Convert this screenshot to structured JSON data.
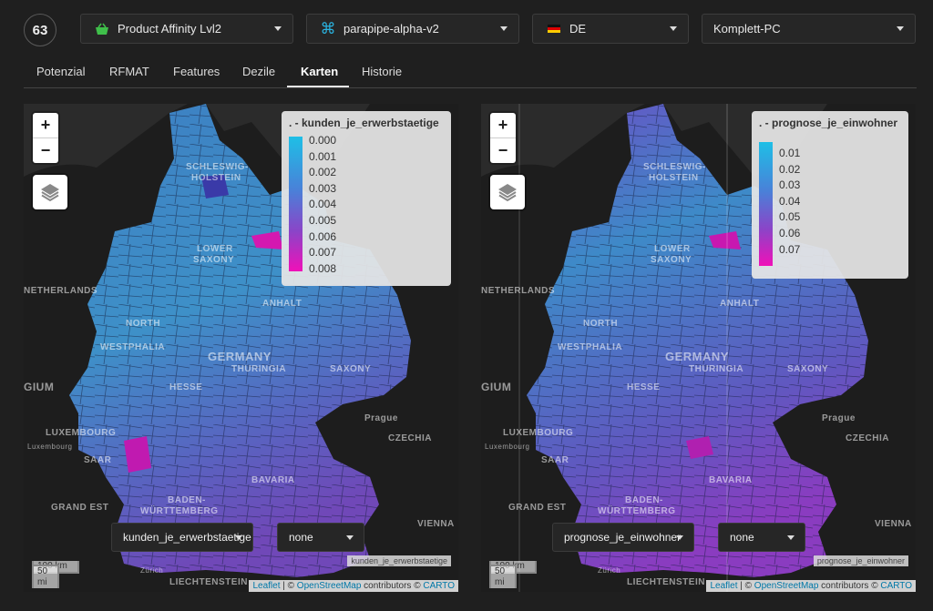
{
  "header": {
    "badge": "63",
    "dropdowns": [
      {
        "icon": "basket-icon",
        "label": "Product Affinity Lvl2"
      },
      {
        "icon": "command-icon",
        "label": "parapipe-alpha-v2"
      },
      {
        "icon": "flag-de-icon",
        "label": "DE"
      },
      {
        "icon": "",
        "label": "Komplett-PC"
      }
    ]
  },
  "tabs": [
    {
      "label": "Potenzial"
    },
    {
      "label": "RFMAT"
    },
    {
      "label": "Features"
    },
    {
      "label": "Dezile"
    },
    {
      "label": "Karten",
      "active": true
    },
    {
      "label": "Historie"
    }
  ],
  "maps": [
    {
      "legend_title": ". - kunden_je_erwerbstaetige",
      "legend_ticks": [
        "0.000",
        "0.001",
        "0.002",
        "0.003",
        "0.004",
        "0.005",
        "0.006",
        "0.007",
        "0.008"
      ],
      "variable_select": "kunden_je_erwerbstaetige",
      "secondary_select": "none",
      "mini_label": "kunden_je_erwerbstaetige",
      "scale_km": "100 km",
      "scale_mi": "50 mi"
    },
    {
      "legend_title": ". - prognose_je_einwohner",
      "legend_ticks": [
        "0.01",
        "0.02",
        "0.03",
        "0.04",
        "0.05",
        "0.06",
        "0.07"
      ],
      "variable_select": "prognose_je_einwohner",
      "secondary_select": "none",
      "mini_label": "prognose_je_einwohner",
      "scale_km": "100 km",
      "scale_mi": "50 mi"
    }
  ],
  "zoom": {
    "plus": "+",
    "minus": "−"
  },
  "attribution": {
    "leaflet": "Leaflet",
    "sep1": " | © ",
    "osm": "OpenStreetMap",
    "mid": " contributors © ",
    "carto": "CARTO"
  },
  "map_labels": {
    "schleswig": "SCHLESWIG-",
    "holstein": "HOLSTEIN",
    "lower": "LOWER",
    "saxony_low": "SAXONY",
    "netherlands": "NETHERLANDS",
    "north": "NORTH",
    "westphalia": "WESTPHALIA",
    "germany": "GERMANY",
    "thuringia": "THURINGIA",
    "saxony": "SAXONY",
    "hesse": "HESSE",
    "anhalt": "ANHALT",
    "gium": "GIUM",
    "luxembourg_cap": "LUXEMBOURG",
    "luxembourg": "Luxembourg",
    "saar": "SAAR",
    "prague": "Prague",
    "czechia": "CZECHIA",
    "grand_est": "GRAND EST",
    "baden": "BADEN-",
    "wurttemberg": "WÜRTTEMBERG",
    "bavaria": "BAVARIA",
    "vienna": "VIENNA",
    "zurich": "Zürich",
    "liechtenstein": "LIECHTENSTEIN"
  }
}
